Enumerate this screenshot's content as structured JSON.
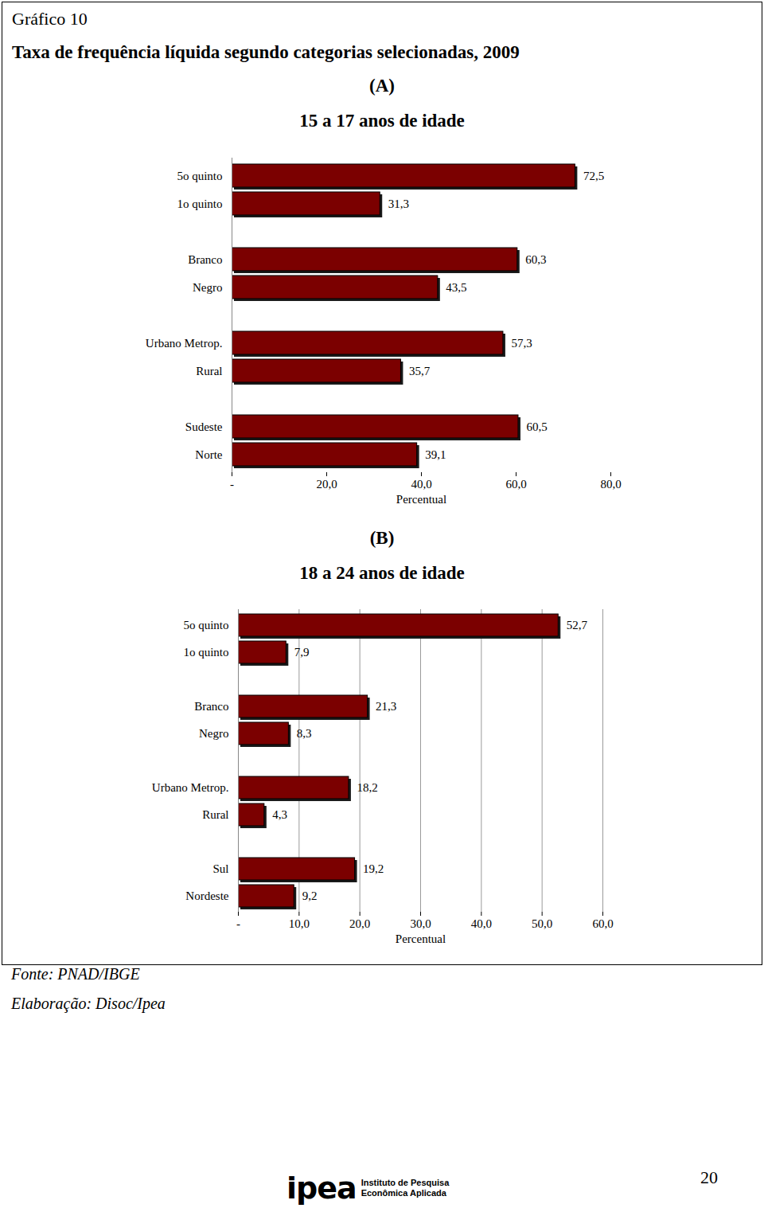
{
  "figure_label": "Gráfico 10",
  "title": "Taxa de frequência líquida segundo categorias selecionadas, 2009",
  "source": "Fonte: PNAD/IBGE",
  "credit": "Elaboração: Disoc/Ipea",
  "logo": "ipea",
  "logo_text": [
    "Instituto de Pesquisa",
    "Econômica Aplicada"
  ],
  "page_number": 20,
  "chart_data": [
    {
      "type": "bar",
      "orientation": "horizontal",
      "title": "(A)",
      "subtitle": "15 a 17 anos de idade",
      "categories": [
        "5o quinto",
        "1o quinto",
        "Branco",
        "Negro",
        "Urbano Metrop.",
        "Rural",
        "Sudeste",
        "Norte"
      ],
      "values": [
        72.5,
        31.3,
        60.3,
        43.5,
        57.3,
        35.7,
        60.5,
        39.1
      ],
      "value_labels": [
        "72,5",
        "31,3",
        "60,3",
        "43,5",
        "57,3",
        "35,7",
        "60,5",
        "39,1"
      ],
      "color": "#7b0000",
      "data_labels": true,
      "grid": false,
      "x_label": "Percentual",
      "xlim": [
        0,
        80
      ],
      "xticks": [
        {
          "value": 0,
          "label": "-"
        },
        {
          "value": 20,
          "label": "20,0"
        },
        {
          "value": 40,
          "label": "40,0"
        },
        {
          "value": 60,
          "label": "60,0"
        },
        {
          "value": 80,
          "label": "80,0"
        }
      ]
    },
    {
      "type": "bar",
      "orientation": "horizontal",
      "title": "(B)",
      "subtitle": "18 a 24 anos de idade",
      "categories": [
        "5o quinto",
        "1o quinto",
        "Branco",
        "Negro",
        "Urbano Metrop.",
        "Rural",
        "Sul",
        "Nordeste"
      ],
      "values": [
        52.7,
        7.9,
        21.3,
        8.3,
        18.2,
        4.3,
        19.2,
        9.2
      ],
      "value_labels": [
        "52,7",
        "7,9",
        "21,3",
        "8,3",
        "18,2",
        "4,3",
        "19,2",
        "9,2"
      ],
      "color": "#7b0000",
      "data_labels": true,
      "grid": true,
      "x_label": "Percentual",
      "xlim": [
        0,
        60
      ],
      "xticks": [
        {
          "value": 0,
          "label": "-"
        },
        {
          "value": 10,
          "label": "10,0"
        },
        {
          "value": 20,
          "label": "20,0"
        },
        {
          "value": 30,
          "label": "30,0"
        },
        {
          "value": 40,
          "label": "40,0"
        },
        {
          "value": 50,
          "label": "50,0"
        },
        {
          "value": 60,
          "label": "60,0"
        }
      ]
    }
  ]
}
